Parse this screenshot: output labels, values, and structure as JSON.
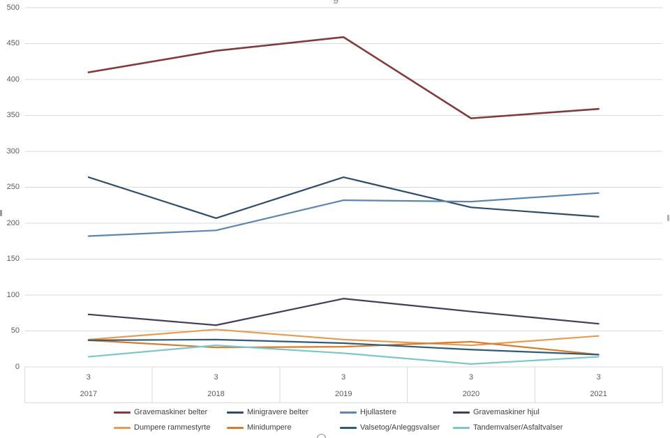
{
  "chart_data": {
    "type": "line",
    "clipped_title_fragment": "g",
    "grid": true,
    "legend_position": "bottom",
    "x_axis": {
      "period_labels": [
        "3",
        "3",
        "3",
        "3",
        "3"
      ],
      "year_labels": [
        "2017",
        "2018",
        "2019",
        "2020",
        "2021"
      ]
    },
    "y_axis": {
      "min": 0,
      "max": 500,
      "step": 50,
      "tick_labels": [
        "0",
        "50",
        "100",
        "150",
        "200",
        "250",
        "300",
        "350",
        "400",
        "450",
        "500"
      ]
    },
    "series": [
      {
        "name": "Gravemaskiner belter",
        "color": "#823b3b",
        "values": [
          410,
          440,
          459,
          346,
          359
        ]
      },
      {
        "name": "Minigravere belter",
        "color": "#2f4d68",
        "values": [
          264,
          207,
          264,
          222,
          209
        ]
      },
      {
        "name": "Hjullastere",
        "color": "#5c85af",
        "values": [
          182,
          190,
          232,
          230,
          242
        ]
      },
      {
        "name": "Gravemaskiner hjul",
        "color": "#443d55",
        "values": [
          73,
          58,
          95,
          77,
          60
        ]
      },
      {
        "name": "Dumpere rammestyrte",
        "color": "#e79c52",
        "values": [
          38,
          52,
          38,
          30,
          43
        ]
      },
      {
        "name": "Minidumpere",
        "color": "#d67d2d",
        "values": [
          37,
          27,
          28,
          35,
          17
        ]
      },
      {
        "name": "Valsetog/Anleggsvalser",
        "color": "#2e5b77",
        "values": [
          37,
          38,
          33,
          24,
          17
        ]
      },
      {
        "name": "Tandemvalser/Asfaltvalser",
        "color": "#7ac6cb",
        "values": [
          14,
          30,
          19,
          4,
          14
        ]
      }
    ],
    "legend_rows": [
      [
        0,
        1,
        2,
        3
      ],
      [
        4,
        5,
        6,
        7
      ]
    ]
  }
}
